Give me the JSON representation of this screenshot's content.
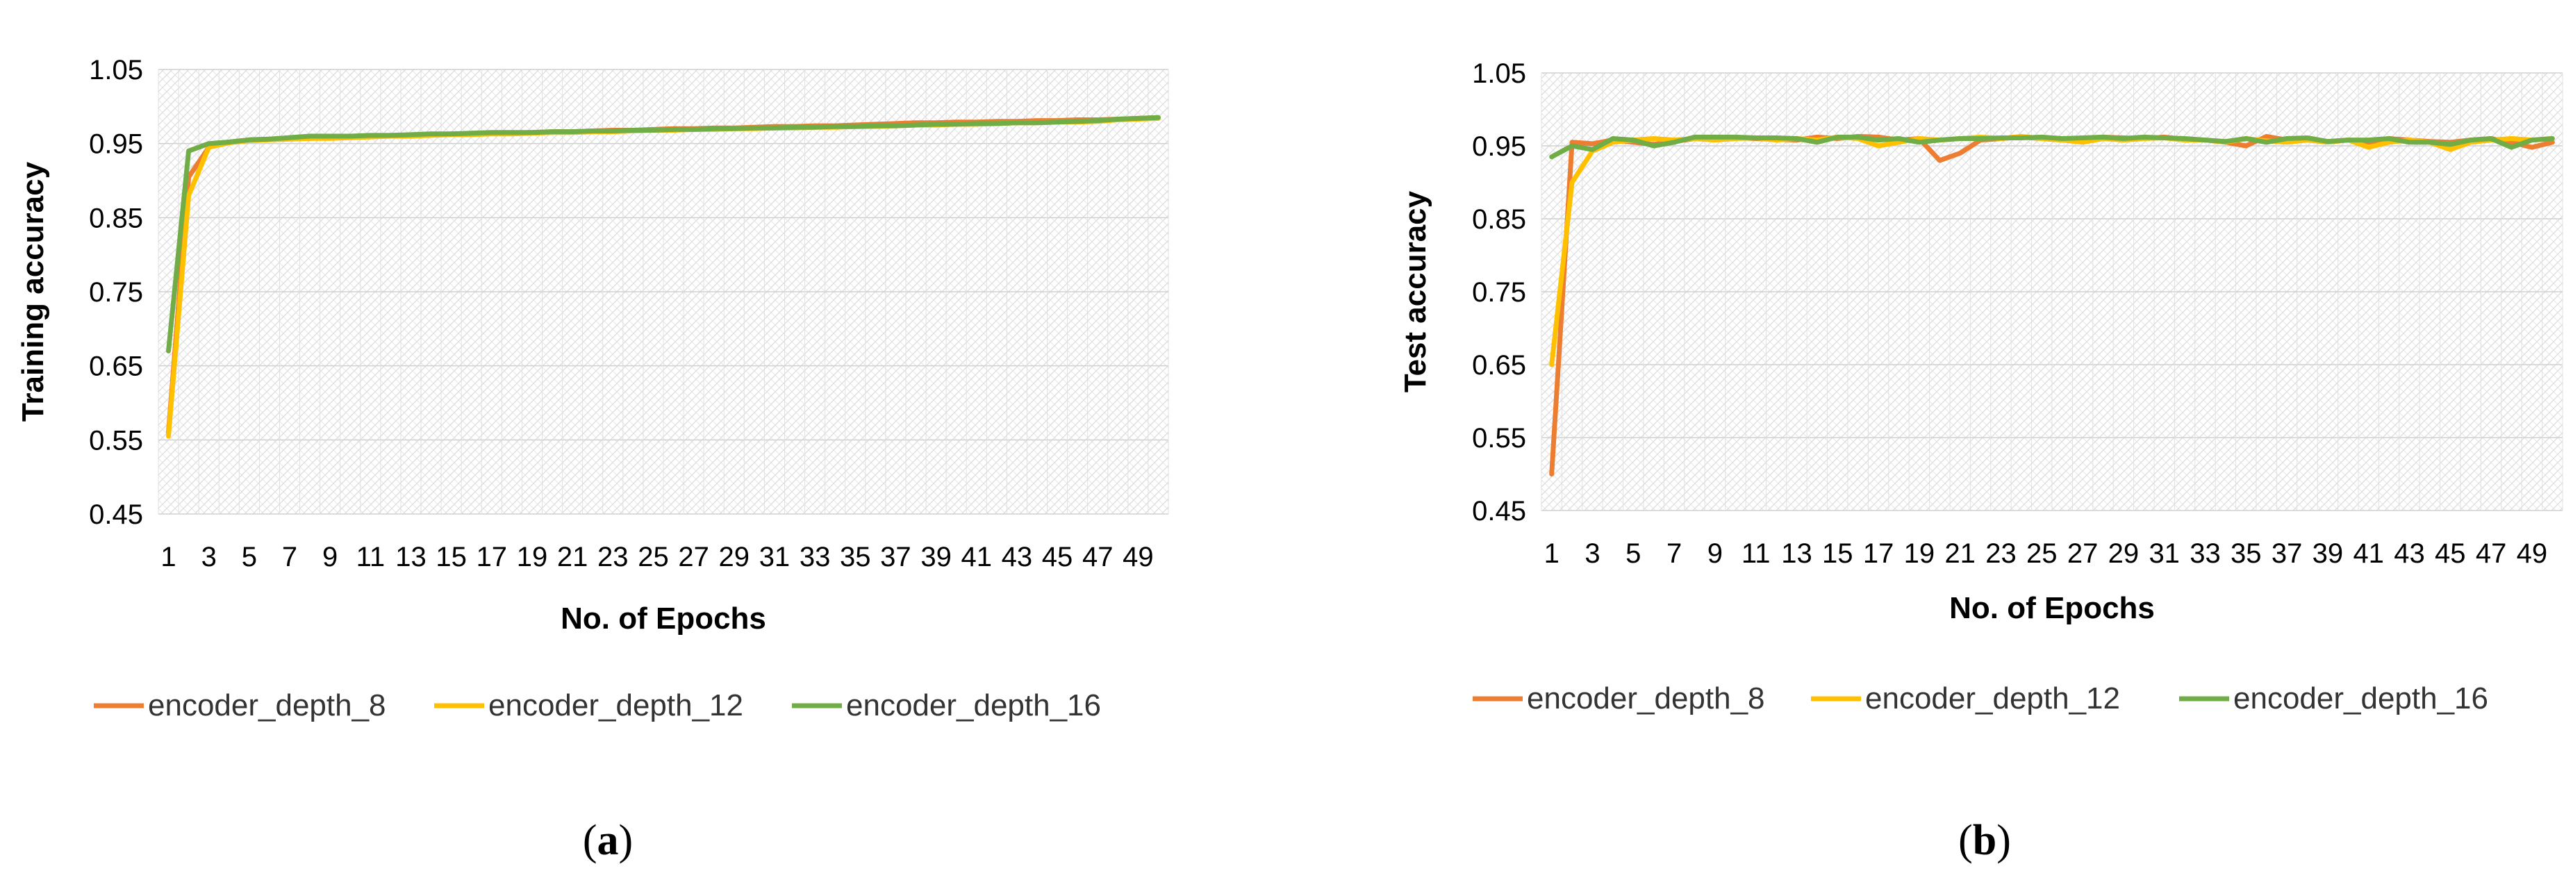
{
  "chart_data": [
    {
      "type": "line",
      "panel_label": "a",
      "xlabel": "No. of Epochs",
      "ylabel": "Training accuracy",
      "ylim": [
        0.45,
        1.05
      ],
      "yticks": [
        "0.45",
        "0.55",
        "0.65",
        "0.75",
        "0.85",
        "0.95",
        "1.05"
      ],
      "x": [
        1,
        2,
        3,
        4,
        5,
        6,
        7,
        8,
        9,
        10,
        11,
        12,
        13,
        14,
        15,
        16,
        17,
        18,
        19,
        20,
        21,
        22,
        23,
        24,
        25,
        26,
        27,
        28,
        29,
        30,
        31,
        32,
        33,
        34,
        35,
        36,
        37,
        38,
        39,
        40,
        41,
        42,
        43,
        44,
        45,
        46,
        47,
        48,
        49,
        50
      ],
      "xticks": [
        1,
        3,
        5,
        7,
        9,
        11,
        13,
        15,
        17,
        19,
        21,
        23,
        25,
        27,
        29,
        31,
        33,
        35,
        37,
        39,
        41,
        43,
        45,
        47,
        49
      ],
      "grid": "hatched background",
      "legend_position": "bottom",
      "series": [
        {
          "name": "encoder_depth_8",
          "color": "#ED7D31",
          "values": [
            0.56,
            0.905,
            0.945,
            0.952,
            0.955,
            0.956,
            0.957,
            0.957,
            0.958,
            0.959,
            0.96,
            0.961,
            0.961,
            0.962,
            0.963,
            0.963,
            0.964,
            0.964,
            0.965,
            0.966,
            0.966,
            0.967,
            0.968,
            0.968,
            0.969,
            0.97,
            0.97,
            0.971,
            0.971,
            0.972,
            0.973,
            0.973,
            0.974,
            0.974,
            0.975,
            0.976,
            0.977,
            0.978,
            0.978,
            0.979,
            0.979,
            0.98,
            0.98,
            0.981,
            0.981,
            0.982,
            0.982,
            0.983,
            0.984,
            0.985
          ]
        },
        {
          "name": "encoder_depth_12",
          "color": "#FFC000",
          "values": [
            0.555,
            0.88,
            0.945,
            0.951,
            0.954,
            0.955,
            0.956,
            0.957,
            0.957,
            0.958,
            0.959,
            0.96,
            0.96,
            0.961,
            0.962,
            0.962,
            0.963,
            0.963,
            0.964,
            0.965,
            0.965,
            0.966,
            0.966,
            0.967,
            0.968,
            0.968,
            0.969,
            0.969,
            0.97,
            0.97,
            0.971,
            0.971,
            0.972,
            0.972,
            0.973,
            0.973,
            0.974,
            0.975,
            0.975,
            0.976,
            0.976,
            0.977,
            0.978,
            0.978,
            0.979,
            0.979,
            0.98,
            0.982,
            0.983,
            0.984
          ]
        },
        {
          "name": "encoder_depth_16",
          "color": "#70AD47",
          "values": [
            0.67,
            0.94,
            0.95,
            0.952,
            0.955,
            0.956,
            0.958,
            0.96,
            0.96,
            0.96,
            0.961,
            0.961,
            0.962,
            0.963,
            0.963,
            0.964,
            0.965,
            0.965,
            0.965,
            0.966,
            0.966,
            0.967,
            0.967,
            0.968,
            0.968,
            0.969,
            0.969,
            0.97,
            0.97,
            0.971,
            0.971,
            0.972,
            0.972,
            0.973,
            0.973,
            0.974,
            0.974,
            0.975,
            0.976,
            0.976,
            0.977,
            0.977,
            0.978,
            0.978,
            0.979,
            0.98,
            0.981,
            0.983,
            0.984,
            0.985
          ]
        }
      ]
    },
    {
      "type": "line",
      "panel_label": "b",
      "xlabel": "No. of Epochs",
      "ylabel": "Test accuracy",
      "ylim": [
        0.45,
        1.05
      ],
      "yticks": [
        "0.45",
        "0.55",
        "0.65",
        "0.75",
        "0.85",
        "0.95",
        "1.05"
      ],
      "x": [
        1,
        2,
        3,
        4,
        5,
        6,
        7,
        8,
        9,
        10,
        11,
        12,
        13,
        14,
        15,
        16,
        17,
        18,
        19,
        20,
        21,
        22,
        23,
        24,
        25,
        26,
        27,
        28,
        29,
        30,
        31,
        32,
        33,
        34,
        35,
        36,
        37,
        38,
        39,
        40,
        41,
        42,
        43,
        44,
        45,
        46,
        47,
        48,
        49,
        50
      ],
      "xticks": [
        1,
        3,
        5,
        7,
        9,
        11,
        13,
        15,
        17,
        19,
        21,
        23,
        25,
        27,
        29,
        31,
        33,
        35,
        37,
        39,
        41,
        43,
        45,
        47,
        49
      ],
      "grid": "hatched background",
      "legend_position": "bottom",
      "series": [
        {
          "name": "encoder_depth_8",
          "color": "#ED7D31",
          "values": [
            0.5,
            0.955,
            0.953,
            0.958,
            0.955,
            0.952,
            0.956,
            0.96,
            0.962,
            0.961,
            0.96,
            0.959,
            0.958,
            0.962,
            0.96,
            0.963,
            0.962,
            0.958,
            0.96,
            0.93,
            0.94,
            0.958,
            0.96,
            0.962,
            0.96,
            0.958,
            0.96,
            0.962,
            0.961,
            0.96,
            0.962,
            0.959,
            0.958,
            0.955,
            0.95,
            0.963,
            0.958,
            0.96,
            0.956,
            0.958,
            0.955,
            0.96,
            0.958,
            0.956,
            0.955,
            0.958,
            0.96,
            0.955,
            0.948,
            0.955
          ]
        },
        {
          "name": "encoder_depth_12",
          "color": "#FFC000",
          "values": [
            0.65,
            0.9,
            0.943,
            0.955,
            0.958,
            0.96,
            0.958,
            0.96,
            0.958,
            0.96,
            0.961,
            0.958,
            0.96,
            0.958,
            0.962,
            0.96,
            0.95,
            0.955,
            0.96,
            0.958,
            0.96,
            0.962,
            0.96,
            0.963,
            0.96,
            0.958,
            0.955,
            0.96,
            0.958,
            0.96,
            0.961,
            0.958,
            0.958,
            0.955,
            0.96,
            0.957,
            0.955,
            0.958,
            0.955,
            0.958,
            0.948,
            0.955,
            0.958,
            0.955,
            0.945,
            0.955,
            0.958,
            0.96,
            0.958,
            0.96
          ]
        },
        {
          "name": "encoder_depth_16",
          "color": "#70AD47",
          "values": [
            0.935,
            0.95,
            0.945,
            0.96,
            0.958,
            0.95,
            0.955,
            0.962,
            0.962,
            0.962,
            0.961,
            0.961,
            0.96,
            0.955,
            0.962,
            0.962,
            0.958,
            0.96,
            0.955,
            0.958,
            0.96,
            0.96,
            0.961,
            0.961,
            0.962,
            0.96,
            0.961,
            0.962,
            0.96,
            0.962,
            0.961,
            0.96,
            0.958,
            0.956,
            0.96,
            0.955,
            0.96,
            0.961,
            0.956,
            0.958,
            0.958,
            0.96,
            0.955,
            0.955,
            0.952,
            0.958,
            0.96,
            0.948,
            0.958,
            0.96
          ]
        }
      ]
    }
  ]
}
